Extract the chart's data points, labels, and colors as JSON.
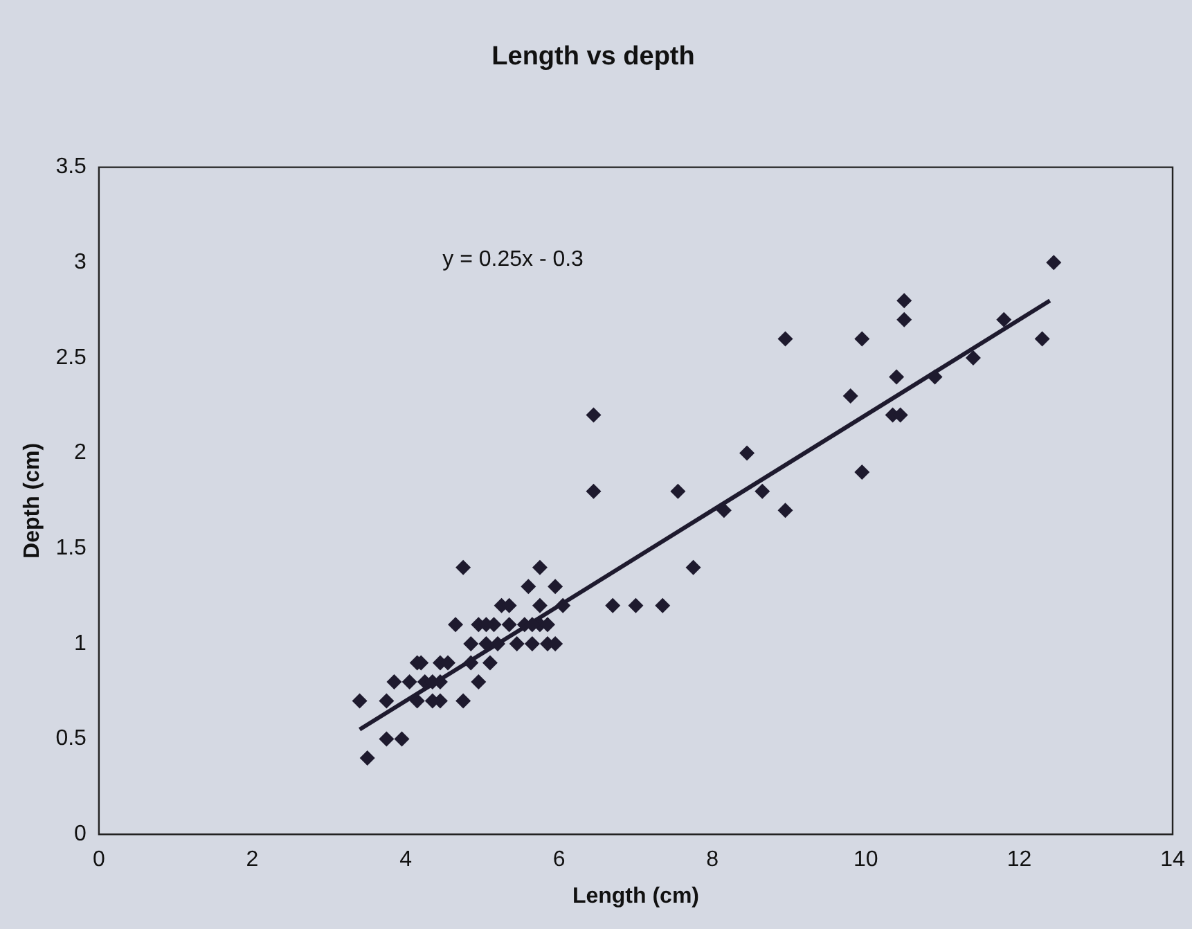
{
  "chart_data": {
    "type": "scatter",
    "title": "Length vs depth",
    "xlabel": "Length (cm)",
    "ylabel": "Depth (cm)",
    "xlim": [
      0,
      14
    ],
    "xticks": [
      0,
      2,
      4,
      6,
      8,
      10,
      12,
      14
    ],
    "ylim": [
      0,
      3.5
    ],
    "yticks": [
      0,
      0.5,
      1,
      1.5,
      2,
      2.5,
      3,
      3.5
    ],
    "grid": false,
    "legend": false,
    "marker": "diamond",
    "annotations": [
      "y = 0.25x - 0.3"
    ],
    "series": [
      {
        "type": "scatter",
        "color": "#1e1a2e",
        "x": [
          3.4,
          3.5,
          3.75,
          3.95,
          3.75,
          3.85,
          4.05,
          4.15,
          4.15,
          4.25,
          4.35,
          4.45,
          4.45,
          4.45,
          4.55,
          4.65,
          4.75,
          4.75,
          4.85,
          4.85,
          4.95,
          4.95,
          5.05,
          5.1,
          5.15,
          5.2,
          5.25,
          5.35,
          5.35,
          5.45,
          5.55,
          5.6,
          5.65,
          5.75,
          5.75,
          5.75,
          5.85,
          5.85,
          5.95,
          5.95,
          6.05,
          5.65,
          5.05,
          4.35,
          4.2,
          6.45,
          6.45,
          6.7,
          7.0,
          7.35,
          7.55,
          7.75,
          8.15,
          8.45,
          8.65,
          8.95,
          8.95,
          9.8,
          9.95,
          9.95,
          10.35,
          10.45,
          10.4,
          10.5,
          10.5,
          10.9,
          11.4,
          11.8,
          12.3,
          12.45
        ],
        "values": [
          0.7,
          0.4,
          0.5,
          0.5,
          0.7,
          0.8,
          0.8,
          0.9,
          0.7,
          0.8,
          0.8,
          0.8,
          0.9,
          0.7,
          0.9,
          1.1,
          1.4,
          0.7,
          0.9,
          1.0,
          0.8,
          1.1,
          1.0,
          0.9,
          1.1,
          1.0,
          1.2,
          1.1,
          1.2,
          1.0,
          1.1,
          1.3,
          1.0,
          1.1,
          1.2,
          1.4,
          1.0,
          1.1,
          1.0,
          1.3,
          1.2,
          1.1,
          1.1,
          0.7,
          0.9,
          2.2,
          1.8,
          1.2,
          1.2,
          1.2,
          1.8,
          1.4,
          1.7,
          2.0,
          1.8,
          2.6,
          1.7,
          2.3,
          2.6,
          1.9,
          2.2,
          2.2,
          2.4,
          2.8,
          2.7,
          2.4,
          2.5,
          2.7,
          2.6,
          3.0
        ]
      },
      {
        "type": "line",
        "color": "#1e1a2e",
        "x": [
          3.4,
          12.4
        ],
        "values": [
          0.55,
          2.8
        ],
        "marker": "none"
      }
    ]
  }
}
